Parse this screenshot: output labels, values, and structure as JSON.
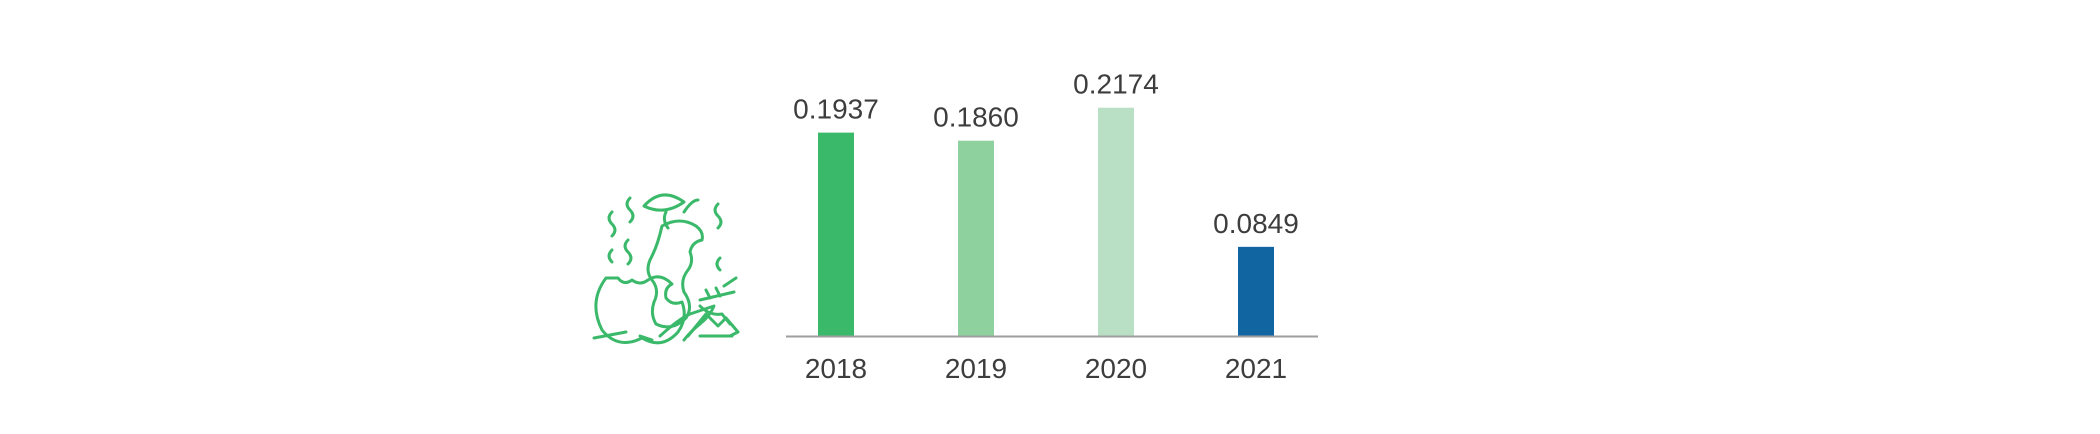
{
  "chart_data": {
    "type": "bar",
    "categories": [
      "2018",
      "2019",
      "2020",
      "2021"
    ],
    "values": [
      0.1937,
      0.186,
      0.2174,
      0.0849
    ],
    "value_labels": [
      "0.1937",
      "0.1860",
      "0.2174",
      "0.0849"
    ],
    "bar_colors": [
      "#3bb96a",
      "#8fd19e",
      "#b9e0c5",
      "#1165a0"
    ],
    "title": "",
    "xlabel": "",
    "ylabel": "",
    "ylim": [
      0,
      0.28
    ],
    "grid": false,
    "legend": "none"
  },
  "decor": {
    "icon": "rotten-apple-food-waste-icon",
    "icon_color": "#3bb96a",
    "axis_color": "#9e9e9e",
    "label_color": "#3d3d3d"
  }
}
